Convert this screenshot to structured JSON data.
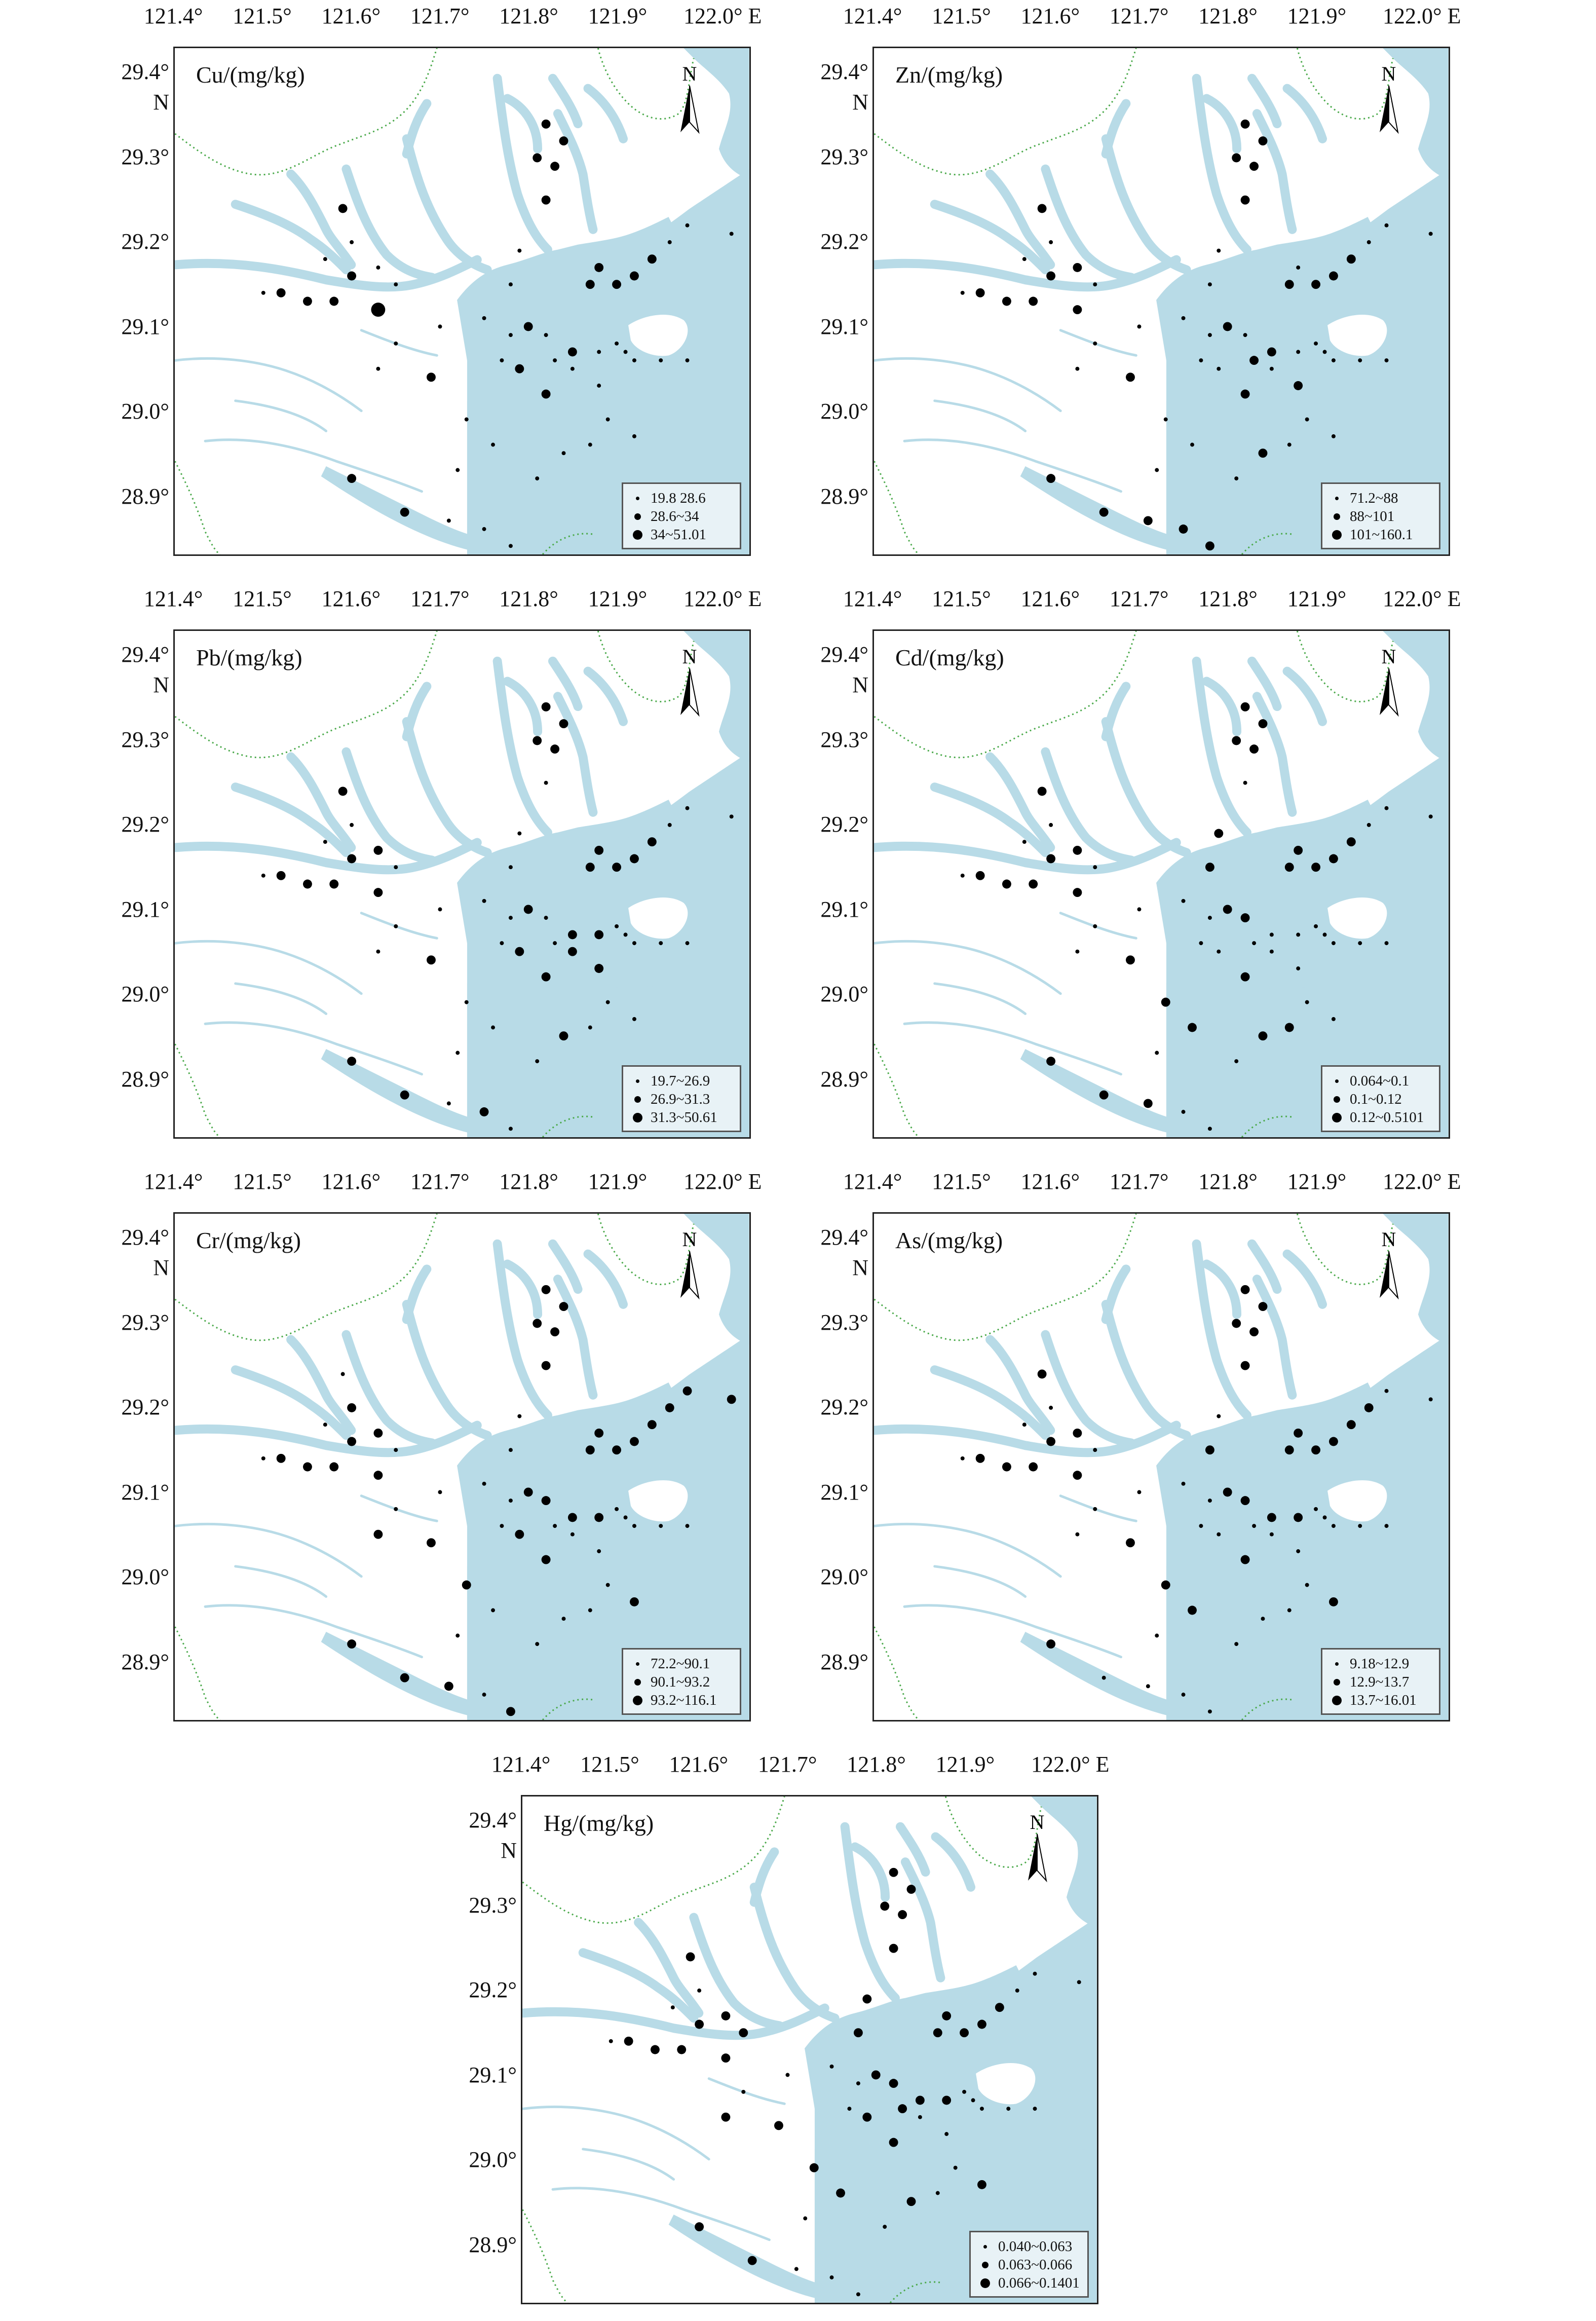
{
  "map_axes": {
    "x_ticks": [
      "121.4°",
      "121.5°",
      "121.6°",
      "121.7°",
      "121.8°",
      "121.9°",
      "122.0° E"
    ],
    "y_ticks": [
      "29.4°",
      "29.3°",
      "29.2°",
      "29.1°",
      "29.0°",
      "28.9°"
    ],
    "y_unit": "N",
    "lon_range": [
      121.4,
      122.05
    ],
    "lat_range": [
      28.83,
      29.43
    ]
  },
  "north_label": "N",
  "colors": {
    "water": "#b8dbe7",
    "land": "#ffffff",
    "border": "#4caa4c",
    "points": "#000000"
  },
  "panels": [
    {
      "label": "Cu/(mg/kg)",
      "legend": [
        "19.8  28.6",
        "28.6~34",
        "34~51.01"
      ]
    },
    {
      "label": "Zn/(mg/kg)",
      "legend": [
        "71.2~88",
        "88~101",
        "101~160.1"
      ]
    },
    {
      "label": "Pb/(mg/kg)",
      "legend": [
        "19.7~26.9",
        "26.9~31.3",
        "31.3~50.61"
      ]
    },
    {
      "label": "Cd/(mg/kg)",
      "legend": [
        "0.064~0.1",
        "0.1~0.12",
        "0.12~0.5101"
      ]
    },
    {
      "label": "Cr/(mg/kg)",
      "legend": [
        "72.2~90.1",
        "90.1~93.2",
        "93.2~116.1"
      ]
    },
    {
      "label": "As/(mg/kg)",
      "legend": [
        "9.18~12.9",
        "12.9~13.7",
        "13.7~16.01"
      ]
    },
    {
      "label": "Hg/(mg/kg)",
      "legend": [
        "0.040~0.063",
        "0.063~0.066",
        "0.066~0.1401"
      ]
    }
  ],
  "stations": [
    [
      121.82,
      29.34
    ],
    [
      121.84,
      29.32
    ],
    [
      121.81,
      29.3
    ],
    [
      121.83,
      29.29
    ],
    [
      121.82,
      29.25
    ],
    [
      121.79,
      29.19
    ],
    [
      121.88,
      29.17
    ],
    [
      121.87,
      29.15
    ],
    [
      121.9,
      29.15
    ],
    [
      121.92,
      29.16
    ],
    [
      121.94,
      29.18
    ],
    [
      121.96,
      29.2
    ],
    [
      121.98,
      29.22
    ],
    [
      122.03,
      29.21
    ],
    [
      121.78,
      29.15
    ],
    [
      121.59,
      29.24
    ],
    [
      121.6,
      29.2
    ],
    [
      121.63,
      29.17
    ],
    [
      121.6,
      29.16
    ],
    [
      121.65,
      29.15
    ],
    [
      121.63,
      29.12
    ],
    [
      121.58,
      29.13
    ],
    [
      121.55,
      29.13
    ],
    [
      121.52,
      29.14
    ],
    [
      121.5,
      29.14
    ],
    [
      121.57,
      29.18
    ],
    [
      121.7,
      29.1
    ],
    [
      121.65,
      29.08
    ],
    [
      121.69,
      29.04
    ],
    [
      121.75,
      29.11
    ],
    [
      121.8,
      29.1
    ],
    [
      121.82,
      29.09
    ],
    [
      121.78,
      29.09
    ],
    [
      121.85,
      29.07
    ],
    [
      121.88,
      29.07
    ],
    [
      121.83,
      29.06
    ],
    [
      121.9,
      29.08
    ],
    [
      121.91,
      29.07
    ],
    [
      121.92,
      29.06
    ],
    [
      121.95,
      29.06
    ],
    [
      121.98,
      29.06
    ],
    [
      121.85,
      29.05
    ],
    [
      121.79,
      29.05
    ],
    [
      121.77,
      29.06
    ],
    [
      121.63,
      29.05
    ],
    [
      121.82,
      29.02
    ],
    [
      121.88,
      29.03
    ],
    [
      121.73,
      28.99
    ],
    [
      121.76,
      28.96
    ],
    [
      121.84,
      28.95
    ],
    [
      121.87,
      28.96
    ],
    [
      121.6,
      28.92
    ],
    [
      121.66,
      28.88
    ],
    [
      121.71,
      28.87
    ],
    [
      121.75,
      28.86
    ],
    [
      121.78,
      28.84
    ],
    [
      121.72,
      28.93
    ],
    [
      121.81,
      28.92
    ],
    [
      121.92,
      28.97
    ],
    [
      121.89,
      28.99
    ]
  ],
  "values": {
    "Cu": [
      2,
      2,
      2,
      2,
      2,
      1,
      2,
      2,
      2,
      2,
      2,
      1,
      1,
      1,
      1,
      2,
      1,
      1,
      2,
      1,
      3,
      2,
      2,
      2,
      1,
      1,
      1,
      1,
      2,
      1,
      2,
      1,
      1,
      2,
      1,
      1,
      1,
      1,
      1,
      1,
      1,
      1,
      2,
      1,
      1,
      2,
      1,
      1,
      1,
      1,
      1,
      2,
      2,
      1,
      1,
      1,
      1,
      1,
      1,
      1
    ],
    "Zn": [
      2,
      2,
      2,
      2,
      2,
      1,
      1,
      2,
      2,
      2,
      2,
      1,
      1,
      1,
      1,
      2,
      1,
      2,
      2,
      1,
      2,
      2,
      2,
      2,
      1,
      1,
      1,
      1,
      2,
      1,
      2,
      1,
      1,
      2,
      1,
      2,
      1,
      1,
      1,
      1,
      1,
      1,
      1,
      1,
      1,
      2,
      2,
      1,
      1,
      2,
      1,
      2,
      2,
      2,
      2,
      2,
      1,
      1,
      1,
      1
    ],
    "Pb": [
      2,
      2,
      2,
      2,
      1,
      1,
      2,
      2,
      2,
      2,
      2,
      1,
      1,
      1,
      1,
      2,
      1,
      2,
      2,
      1,
      2,
      2,
      2,
      2,
      1,
      1,
      1,
      1,
      2,
      1,
      2,
      1,
      1,
      2,
      2,
      1,
      1,
      1,
      1,
      1,
      1,
      2,
      2,
      1,
      1,
      2,
      2,
      1,
      1,
      2,
      1,
      2,
      2,
      1,
      2,
      1,
      1,
      1,
      1,
      1
    ],
    "Cd": [
      2,
      2,
      2,
      2,
      1,
      2,
      2,
      2,
      2,
      2,
      2,
      1,
      1,
      1,
      2,
      2,
      1,
      2,
      2,
      1,
      2,
      2,
      2,
      2,
      1,
      1,
      1,
      1,
      2,
      1,
      2,
      2,
      1,
      1,
      1,
      1,
      1,
      1,
      1,
      1,
      1,
      1,
      1,
      1,
      1,
      2,
      1,
      2,
      2,
      2,
      2,
      2,
      2,
      2,
      1,
      1,
      1,
      1,
      1,
      1
    ],
    "Cr": [
      2,
      2,
      2,
      2,
      2,
      1,
      2,
      2,
      2,
      2,
      2,
      2,
      2,
      2,
      1,
      1,
      2,
      2,
      2,
      1,
      2,
      2,
      2,
      2,
      1,
      1,
      1,
      1,
      2,
      1,
      2,
      2,
      1,
      2,
      2,
      1,
      1,
      1,
      1,
      1,
      1,
      1,
      2,
      1,
      2,
      2,
      1,
      2,
      1,
      1,
      1,
      2,
      2,
      2,
      1,
      2,
      1,
      1,
      2,
      1
    ],
    "As": [
      2,
      2,
      2,
      2,
      2,
      1,
      2,
      2,
      2,
      2,
      2,
      2,
      1,
      1,
      2,
      2,
      1,
      2,
      2,
      1,
      2,
      2,
      2,
      2,
      1,
      1,
      1,
      1,
      2,
      1,
      2,
      2,
      1,
      2,
      2,
      1,
      1,
      1,
      1,
      1,
      1,
      1,
      1,
      1,
      1,
      2,
      1,
      2,
      2,
      1,
      1,
      2,
      1,
      1,
      1,
      1,
      1,
      1,
      2,
      1
    ],
    "Hg": [
      2,
      2,
      2,
      2,
      2,
      2,
      2,
      2,
      2,
      2,
      2,
      1,
      1,
      1,
      2,
      2,
      1,
      2,
      2,
      2,
      2,
      2,
      2,
      2,
      1,
      1,
      1,
      1,
      2,
      1,
      2,
      2,
      1,
      2,
      2,
      2,
      1,
      1,
      1,
      1,
      1,
      1,
      2,
      1,
      2,
      2,
      1,
      2,
      2,
      2,
      1,
      2,
      2,
      1,
      1,
      1,
      1,
      1,
      2,
      1
    ]
  }
}
